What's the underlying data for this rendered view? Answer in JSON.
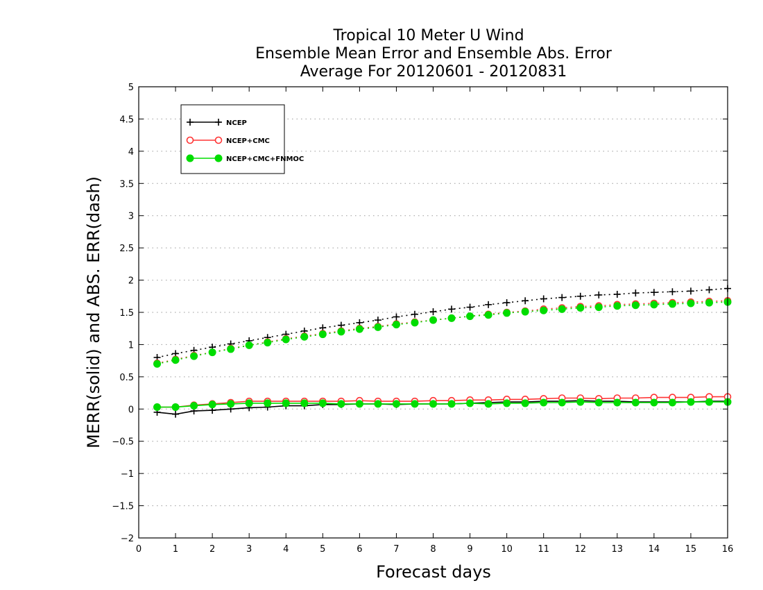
{
  "chart_data": {
    "type": "line",
    "title": [
      "Tropical 10 Meter U Wind",
      "Ensemble Mean Error and Ensemble Abs. Error",
      "Average For 20120601 - 20120831"
    ],
    "xlabel": "Forecast days",
    "ylabel": "MERR(solid) and ABS. ERR(dash)",
    "xlim": [
      0,
      16
    ],
    "ylim": [
      -2,
      5
    ],
    "xticks": [
      0,
      1,
      2,
      3,
      4,
      5,
      6,
      7,
      8,
      9,
      10,
      11,
      12,
      13,
      14,
      15,
      16
    ],
    "yticks": [
      -2,
      -1.5,
      -1,
      -0.5,
      0,
      0.5,
      1,
      1.5,
      2,
      2.5,
      3,
      3.5,
      4,
      4.5,
      5
    ],
    "ytick_labels": [
      "−2",
      "−1.5",
      "−1",
      "−0.5",
      "0",
      "0.5",
      "1",
      "1.5",
      "2",
      "2.5",
      "3",
      "3.5",
      "4",
      "4.5",
      "5"
    ],
    "grid": "horizontal dotted",
    "legend_position": "top-left",
    "x": [
      0.5,
      1,
      1.5,
      2,
      2.5,
      3,
      3.5,
      4,
      4.5,
      5,
      5.5,
      6,
      6.5,
      7,
      7.5,
      8,
      8.5,
      9,
      9.5,
      10,
      10.5,
      11,
      11.5,
      12,
      12.5,
      13,
      13.5,
      14,
      14.5,
      15,
      15.5,
      16
    ],
    "series": [
      {
        "name": "NCEP",
        "color": "#000000",
        "marker": "plus",
        "merr": [
          -0.05,
          -0.08,
          -0.03,
          -0.02,
          0.0,
          0.02,
          0.03,
          0.05,
          0.05,
          0.07,
          0.07,
          0.08,
          0.08,
          0.07,
          0.08,
          0.08,
          0.08,
          0.09,
          0.1,
          0.11,
          0.11,
          0.12,
          0.12,
          0.13,
          0.12,
          0.12,
          0.11,
          0.11,
          0.11,
          0.11,
          0.12,
          0.12
        ],
        "abs_err": [
          0.8,
          0.86,
          0.91,
          0.96,
          1.01,
          1.06,
          1.11,
          1.16,
          1.21,
          1.26,
          1.3,
          1.34,
          1.38,
          1.43,
          1.47,
          1.51,
          1.55,
          1.58,
          1.62,
          1.65,
          1.68,
          1.71,
          1.73,
          1.75,
          1.77,
          1.78,
          1.8,
          1.81,
          1.82,
          1.83,
          1.85,
          1.87
        ]
      },
      {
        "name": "NCEP+CMC",
        "color": "#ff3333",
        "marker": "open-circle",
        "merr": [
          0.03,
          0.03,
          0.06,
          0.08,
          0.1,
          0.12,
          0.12,
          0.12,
          0.12,
          0.12,
          0.12,
          0.13,
          0.12,
          0.12,
          0.12,
          0.13,
          0.13,
          0.14,
          0.14,
          0.15,
          0.15,
          0.16,
          0.17,
          0.17,
          0.16,
          0.17,
          0.17,
          0.18,
          0.18,
          0.18,
          0.19,
          0.19
        ],
        "abs_err": [
          0.71,
          0.77,
          0.83,
          0.88,
          0.94,
          0.99,
          1.04,
          1.09,
          1.13,
          1.17,
          1.21,
          1.25,
          1.28,
          1.32,
          1.35,
          1.38,
          1.41,
          1.44,
          1.47,
          1.5,
          1.52,
          1.55,
          1.57,
          1.59,
          1.6,
          1.62,
          1.63,
          1.64,
          1.65,
          1.66,
          1.67,
          1.68
        ]
      },
      {
        "name": "NCEP+CMC+FNMOC",
        "color": "#00dd00",
        "marker": "filled-circle",
        "merr": [
          0.03,
          0.03,
          0.05,
          0.07,
          0.08,
          0.09,
          0.09,
          0.09,
          0.09,
          0.09,
          0.08,
          0.08,
          0.08,
          0.08,
          0.08,
          0.08,
          0.08,
          0.09,
          0.08,
          0.09,
          0.09,
          0.1,
          0.1,
          0.11,
          0.1,
          0.1,
          0.1,
          0.1,
          0.1,
          0.11,
          0.11,
          0.11
        ],
        "abs_err": [
          0.7,
          0.76,
          0.82,
          0.88,
          0.93,
          0.99,
          1.03,
          1.08,
          1.12,
          1.16,
          1.2,
          1.24,
          1.27,
          1.31,
          1.34,
          1.38,
          1.41,
          1.44,
          1.46,
          1.49,
          1.51,
          1.53,
          1.55,
          1.57,
          1.58,
          1.6,
          1.61,
          1.62,
          1.63,
          1.64,
          1.65,
          1.66
        ]
      }
    ]
  }
}
